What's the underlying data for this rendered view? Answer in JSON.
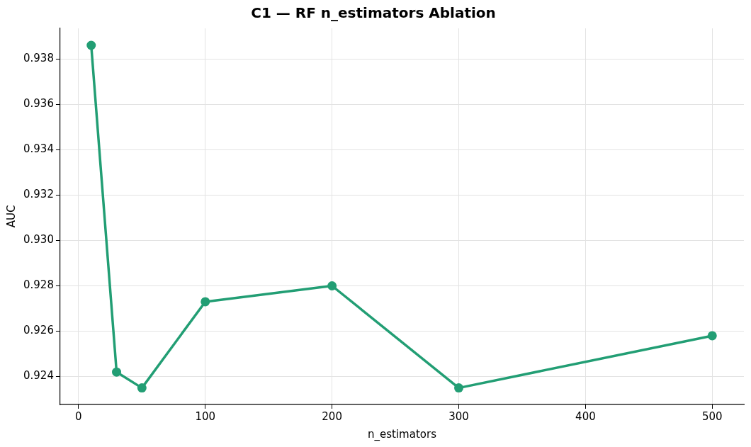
{
  "chart_data": {
    "type": "line",
    "title": "C1 — RF n_estimators Ablation",
    "xlabel": "n_estimators",
    "ylabel": "AUC",
    "x": [
      10,
      30,
      50,
      100,
      200,
      300,
      500
    ],
    "series": [
      {
        "color": "#229e74",
        "values": [
          0.9386,
          0.9242,
          0.9235,
          0.9273,
          0.928,
          0.9235,
          0.9258
        ]
      }
    ],
    "xlim": [
      -14.5,
      525
    ],
    "xticks": [
      0,
      100,
      200,
      300,
      400,
      500
    ],
    "ylim": [
      0.92277,
      0.93935
    ],
    "yticks": [
      0.924,
      0.926,
      0.928,
      {
        "value": 0.93,
        "label": "0.930"
      },
      0.932,
      0.934,
      0.936,
      0.938
    ],
    "grid": true,
    "legend": false,
    "marker": "circle",
    "line_style": "solid"
  }
}
